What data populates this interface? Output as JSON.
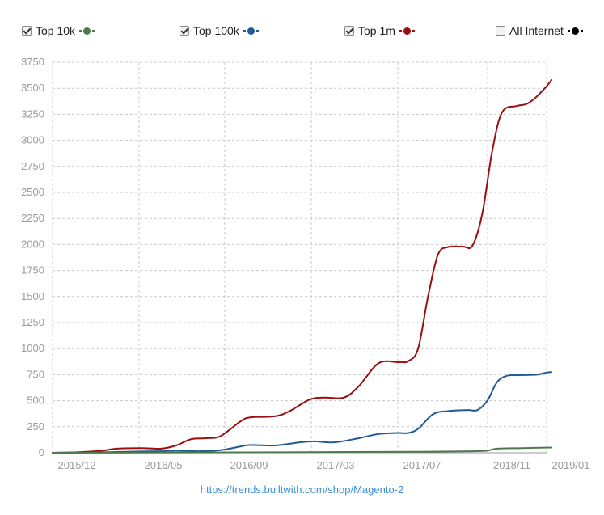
{
  "legend": [
    {
      "label": "Top 10k",
      "checked": true,
      "color": "#4d7a4d"
    },
    {
      "label": "Top 100k",
      "checked": true,
      "color": "#1f5b94"
    },
    {
      "label": "Top 1m",
      "checked": true,
      "color": "#9a0f0f"
    },
    {
      "label": "All Internet",
      "checked": false,
      "color": "#000000"
    }
  ],
  "source_link": "https://trends.builtwith.com/shop/Magento-2",
  "chart_data": {
    "type": "line",
    "ylim": [
      0,
      3750
    ],
    "yticks": [
      0,
      250,
      500,
      750,
      1000,
      1250,
      1500,
      1750,
      2000,
      2250,
      2500,
      2750,
      3000,
      3250,
      3500,
      3750
    ],
    "xticks": [
      "2015/12",
      "2016/05",
      "2016/09",
      "2017/03",
      "2017/07",
      "2018/11",
      "2019/01"
    ],
    "grid": true,
    "series": [
      {
        "name": "Top 1m",
        "color": "#9a0f0f",
        "points": [
          [
            0,
            0
          ],
          [
            0.05,
            5
          ],
          [
            0.1,
            20
          ],
          [
            0.13,
            40
          ],
          [
            0.18,
            45
          ],
          [
            0.22,
            40
          ],
          [
            0.25,
            70
          ],
          [
            0.28,
            130
          ],
          [
            0.31,
            140
          ],
          [
            0.34,
            160
          ],
          [
            0.38,
            300
          ],
          [
            0.4,
            340
          ],
          [
            0.45,
            350
          ],
          [
            0.48,
            400
          ],
          [
            0.52,
            510
          ],
          [
            0.55,
            530
          ],
          [
            0.59,
            530
          ],
          [
            0.62,
            640
          ],
          [
            0.66,
            860
          ],
          [
            0.7,
            870
          ],
          [
            0.72,
            880
          ],
          [
            0.74,
            1000
          ],
          [
            0.76,
            1500
          ],
          [
            0.78,
            1900
          ],
          [
            0.8,
            1975
          ],
          [
            0.83,
            1980
          ],
          [
            0.85,
            1990
          ],
          [
            0.87,
            2300
          ],
          [
            0.89,
            2900
          ],
          [
            0.91,
            3270
          ],
          [
            0.94,
            3330
          ],
          [
            0.96,
            3350
          ],
          [
            0.98,
            3420
          ],
          [
            1,
            3520
          ],
          [
            1.01,
            3580
          ]
        ]
      },
      {
        "name": "Top 100k",
        "color": "#1f5b94",
        "points": [
          [
            0,
            0
          ],
          [
            0.1,
            5
          ],
          [
            0.15,
            10
          ],
          [
            0.22,
            15
          ],
          [
            0.25,
            20
          ],
          [
            0.3,
            15
          ],
          [
            0.34,
            25
          ],
          [
            0.38,
            60
          ],
          [
            0.4,
            75
          ],
          [
            0.45,
            70
          ],
          [
            0.5,
            100
          ],
          [
            0.53,
            110
          ],
          [
            0.57,
            100
          ],
          [
            0.62,
            140
          ],
          [
            0.66,
            180
          ],
          [
            0.7,
            190
          ],
          [
            0.72,
            190
          ],
          [
            0.74,
            230
          ],
          [
            0.77,
            370
          ],
          [
            0.8,
            400
          ],
          [
            0.84,
            410
          ],
          [
            0.86,
            410
          ],
          [
            0.88,
            500
          ],
          [
            0.9,
            680
          ],
          [
            0.92,
            740
          ],
          [
            0.94,
            745
          ],
          [
            0.98,
            750
          ],
          [
            1,
            770
          ],
          [
            1.01,
            775
          ]
        ]
      },
      {
        "name": "Top 10k",
        "color": "#4d7a4d",
        "points": [
          [
            0,
            0
          ],
          [
            0.2,
            2
          ],
          [
            0.4,
            4
          ],
          [
            0.6,
            8
          ],
          [
            0.75,
            10
          ],
          [
            0.85,
            15
          ],
          [
            0.88,
            20
          ],
          [
            0.9,
            40
          ],
          [
            0.95,
            45
          ],
          [
            1.01,
            50
          ]
        ]
      }
    ]
  }
}
